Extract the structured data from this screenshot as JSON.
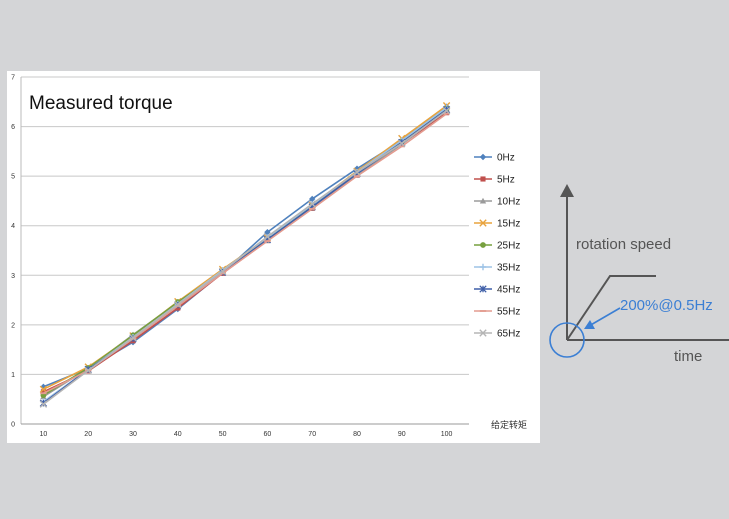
{
  "chart_data": {
    "type": "line",
    "title": "Measured torque",
    "xlabel": "给定转矩",
    "ylabel": "",
    "x": [
      10,
      20,
      30,
      40,
      50,
      60,
      70,
      80,
      90,
      100
    ],
    "ylim": [
      0,
      7
    ],
    "yticks": [
      0,
      1,
      2,
      3,
      4,
      5,
      6,
      7
    ],
    "grid": true,
    "legend_position": "right",
    "series": [
      {
        "name": "0Hz",
        "color": "#4f81bd",
        "marker": "diamond",
        "values": [
          0.75,
          1.12,
          1.65,
          2.32,
          3.05,
          3.87,
          4.54,
          5.15,
          5.72,
          6.4
        ]
      },
      {
        "name": "5Hz",
        "color": "#c0504d",
        "marker": "square",
        "values": [
          0.65,
          1.07,
          1.68,
          2.34,
          3.04,
          3.7,
          4.35,
          5.02,
          5.65,
          6.28
        ]
      },
      {
        "name": "10Hz",
        "color": "#9b9b9b",
        "marker": "triangle",
        "values": [
          0.55,
          1.12,
          1.8,
          2.45,
          3.08,
          3.7,
          4.36,
          5.03,
          5.64,
          6.34
        ]
      },
      {
        "name": "15Hz",
        "color": "#e8a33d",
        "marker": "x",
        "values": [
          0.7,
          1.15,
          1.78,
          2.47,
          3.12,
          3.75,
          4.42,
          5.1,
          5.76,
          6.42
        ]
      },
      {
        "name": "25Hz",
        "color": "#77a03f",
        "marker": "circle",
        "values": [
          0.58,
          1.13,
          1.79,
          2.46,
          3.07,
          3.73,
          4.4,
          5.06,
          5.7,
          6.36
        ]
      },
      {
        "name": "35Hz",
        "color": "#9dc3e6",
        "marker": "plus",
        "values": [
          0.45,
          1.1,
          1.75,
          2.42,
          3.1,
          3.76,
          4.42,
          5.08,
          5.72,
          6.38
        ]
      },
      {
        "name": "45Hz",
        "color": "#3f5fa8",
        "marker": "star",
        "values": [
          0.42,
          1.1,
          1.72,
          2.4,
          3.06,
          3.72,
          4.38,
          5.05,
          5.68,
          6.34
        ]
      },
      {
        "name": "55Hz",
        "color": "#e39b8f",
        "marker": "dash",
        "values": [
          0.62,
          1.08,
          1.72,
          2.38,
          3.04,
          3.69,
          4.34,
          5.0,
          5.6,
          6.26
        ]
      },
      {
        "name": "65Hz",
        "color": "#b5b5b5",
        "marker": "x",
        "values": [
          0.4,
          1.08,
          1.74,
          2.41,
          3.08,
          3.78,
          4.44,
          5.08,
          5.66,
          6.32
        ]
      }
    ]
  },
  "diagram": {
    "y_axis_label": "rotation speed",
    "x_axis_label": "time",
    "annotation": "200%@0.5Hz",
    "annotation_color": "#3b7fd4"
  }
}
